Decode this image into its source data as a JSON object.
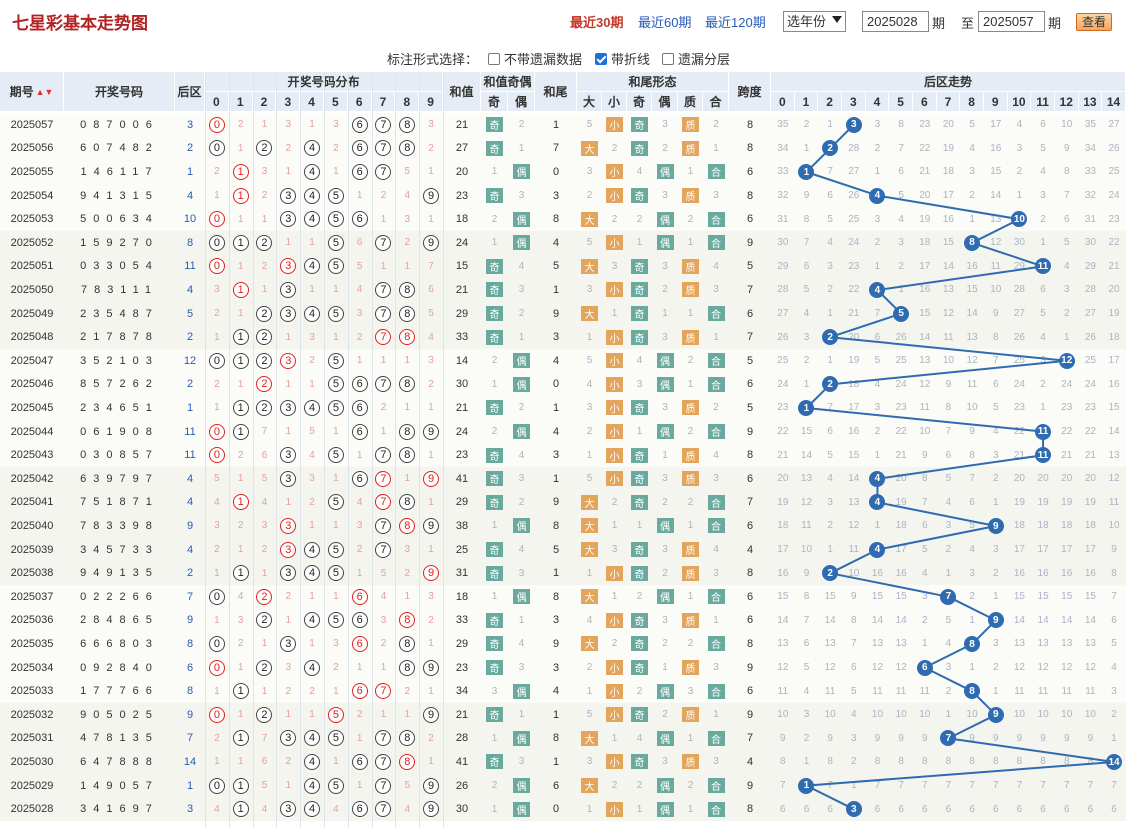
{
  "header": {
    "title": "七星彩基本走势图",
    "periods": [
      "最近30期",
      "最近60期",
      "最近120期"
    ],
    "year_select": "选年份",
    "from_issue": "2025028",
    "from_suffix": "期",
    "to_label": "至",
    "to_issue": "2025057",
    "to_suffix": "期",
    "view_button": "查看"
  },
  "options": {
    "label": "标注形式选择：",
    "items": [
      {
        "label": "不带遗漏数据",
        "checked": false
      },
      {
        "label": "带折线",
        "checked": true
      },
      {
        "label": "遗漏分层",
        "checked": false
      }
    ]
  },
  "table_header": {
    "issue": "期号",
    "numbers": "开奖号码",
    "back": "后区",
    "distribution": "开奖号码分布",
    "sum": "和值",
    "sum_parity": "和值奇偶",
    "odd": "奇",
    "even": "偶",
    "tail": "和尾",
    "tail_form": "和尾形态",
    "big": "大",
    "small": "小",
    "prime": "质",
    "composite": "合",
    "span": "跨度",
    "back_trend": "后区走势",
    "digits": [
      "0",
      "1",
      "2",
      "3",
      "4",
      "5",
      "6",
      "7",
      "8",
      "9"
    ],
    "back_digits": [
      "0",
      "1",
      "2",
      "3",
      "4",
      "5",
      "6",
      "7",
      "8",
      "9",
      "10",
      "11",
      "12",
      "13",
      "14"
    ]
  },
  "labels": {
    "odd": "奇",
    "even": "偶",
    "big": "大",
    "small": "小",
    "prime": "质",
    "composite": "合"
  },
  "rows": [
    {
      "issue": "2025057",
      "nums": [
        0,
        8,
        7,
        0,
        0,
        6
      ],
      "back": 3
    },
    {
      "issue": "2025056",
      "nums": [
        6,
        0,
        7,
        4,
        8,
        2
      ],
      "back": 2
    },
    {
      "issue": "2025055",
      "nums": [
        1,
        4,
        6,
        1,
        1,
        7
      ],
      "back": 1
    },
    {
      "issue": "2025054",
      "nums": [
        9,
        4,
        1,
        3,
        1,
        5
      ],
      "back": 4
    },
    {
      "issue": "2025053",
      "nums": [
        5,
        0,
        0,
        6,
        3,
        4
      ],
      "back": 10
    },
    {
      "issue": "2025052",
      "nums": [
        1,
        5,
        9,
        2,
        7,
        0
      ],
      "back": 8
    },
    {
      "issue": "2025051",
      "nums": [
        0,
        3,
        3,
        0,
        5,
        4
      ],
      "back": 11
    },
    {
      "issue": "2025050",
      "nums": [
        7,
        8,
        3,
        1,
        1,
        1
      ],
      "back": 4
    },
    {
      "issue": "2025049",
      "nums": [
        2,
        3,
        5,
        4,
        8,
        7
      ],
      "back": 5
    },
    {
      "issue": "2025048",
      "nums": [
        2,
        1,
        7,
        8,
        7,
        8
      ],
      "back": 2
    },
    {
      "issue": "2025047",
      "nums": [
        3,
        5,
        2,
        1,
        0,
        3
      ],
      "back": 12
    },
    {
      "issue": "2025046",
      "nums": [
        8,
        5,
        7,
        2,
        6,
        2
      ],
      "back": 2
    },
    {
      "issue": "2025045",
      "nums": [
        2,
        3,
        4,
        6,
        5,
        1
      ],
      "back": 1
    },
    {
      "issue": "2025044",
      "nums": [
        0,
        6,
        1,
        9,
        0,
        8
      ],
      "back": 11
    },
    {
      "issue": "2025043",
      "nums": [
        0,
        3,
        0,
        8,
        5,
        7
      ],
      "back": 11
    },
    {
      "issue": "2025042",
      "nums": [
        6,
        3,
        9,
        7,
        9,
        7
      ],
      "back": 4
    },
    {
      "issue": "2025041",
      "nums": [
        7,
        5,
        1,
        8,
        7,
        1
      ],
      "back": 4
    },
    {
      "issue": "2025040",
      "nums": [
        7,
        8,
        3,
        3,
        9,
        8
      ],
      "back": 9
    },
    {
      "issue": "2025039",
      "nums": [
        3,
        4,
        5,
        7,
        3,
        3
      ],
      "back": 4
    },
    {
      "issue": "2025038",
      "nums": [
        9,
        4,
        9,
        1,
        3,
        5
      ],
      "back": 2
    },
    {
      "issue": "2025037",
      "nums": [
        0,
        2,
        2,
        2,
        6,
        6
      ],
      "back": 7
    },
    {
      "issue": "2025036",
      "nums": [
        2,
        8,
        4,
        8,
        6,
        5
      ],
      "back": 9
    },
    {
      "issue": "2025035",
      "nums": [
        6,
        6,
        6,
        8,
        0,
        3
      ],
      "back": 8
    },
    {
      "issue": "2025034",
      "nums": [
        0,
        9,
        2,
        8,
        4,
        0
      ],
      "back": 6
    },
    {
      "issue": "2025033",
      "nums": [
        1,
        7,
        7,
        7,
        6,
        6
      ],
      "back": 8
    },
    {
      "issue": "2025032",
      "nums": [
        9,
        0,
        5,
        0,
        2,
        5
      ],
      "back": 9
    },
    {
      "issue": "2025031",
      "nums": [
        4,
        7,
        8,
        1,
        3,
        5
      ],
      "back": 7
    },
    {
      "issue": "2025030",
      "nums": [
        6,
        4,
        7,
        8,
        8,
        8
      ],
      "back": 14
    },
    {
      "issue": "2025029",
      "nums": [
        1,
        4,
        9,
        0,
        5,
        7
      ],
      "back": 1
    },
    {
      "issue": "2025028",
      "nums": [
        3,
        4,
        1,
        6,
        9,
        7
      ],
      "back": 3
    }
  ],
  "colors": {
    "header_bg": "#e6ecf5",
    "ball": "#2f6bb0",
    "hit_red": "#e02020",
    "tag_green": "#6aaa9e",
    "tag_orange": "#e3a45c",
    "title": "#b22222"
  }
}
